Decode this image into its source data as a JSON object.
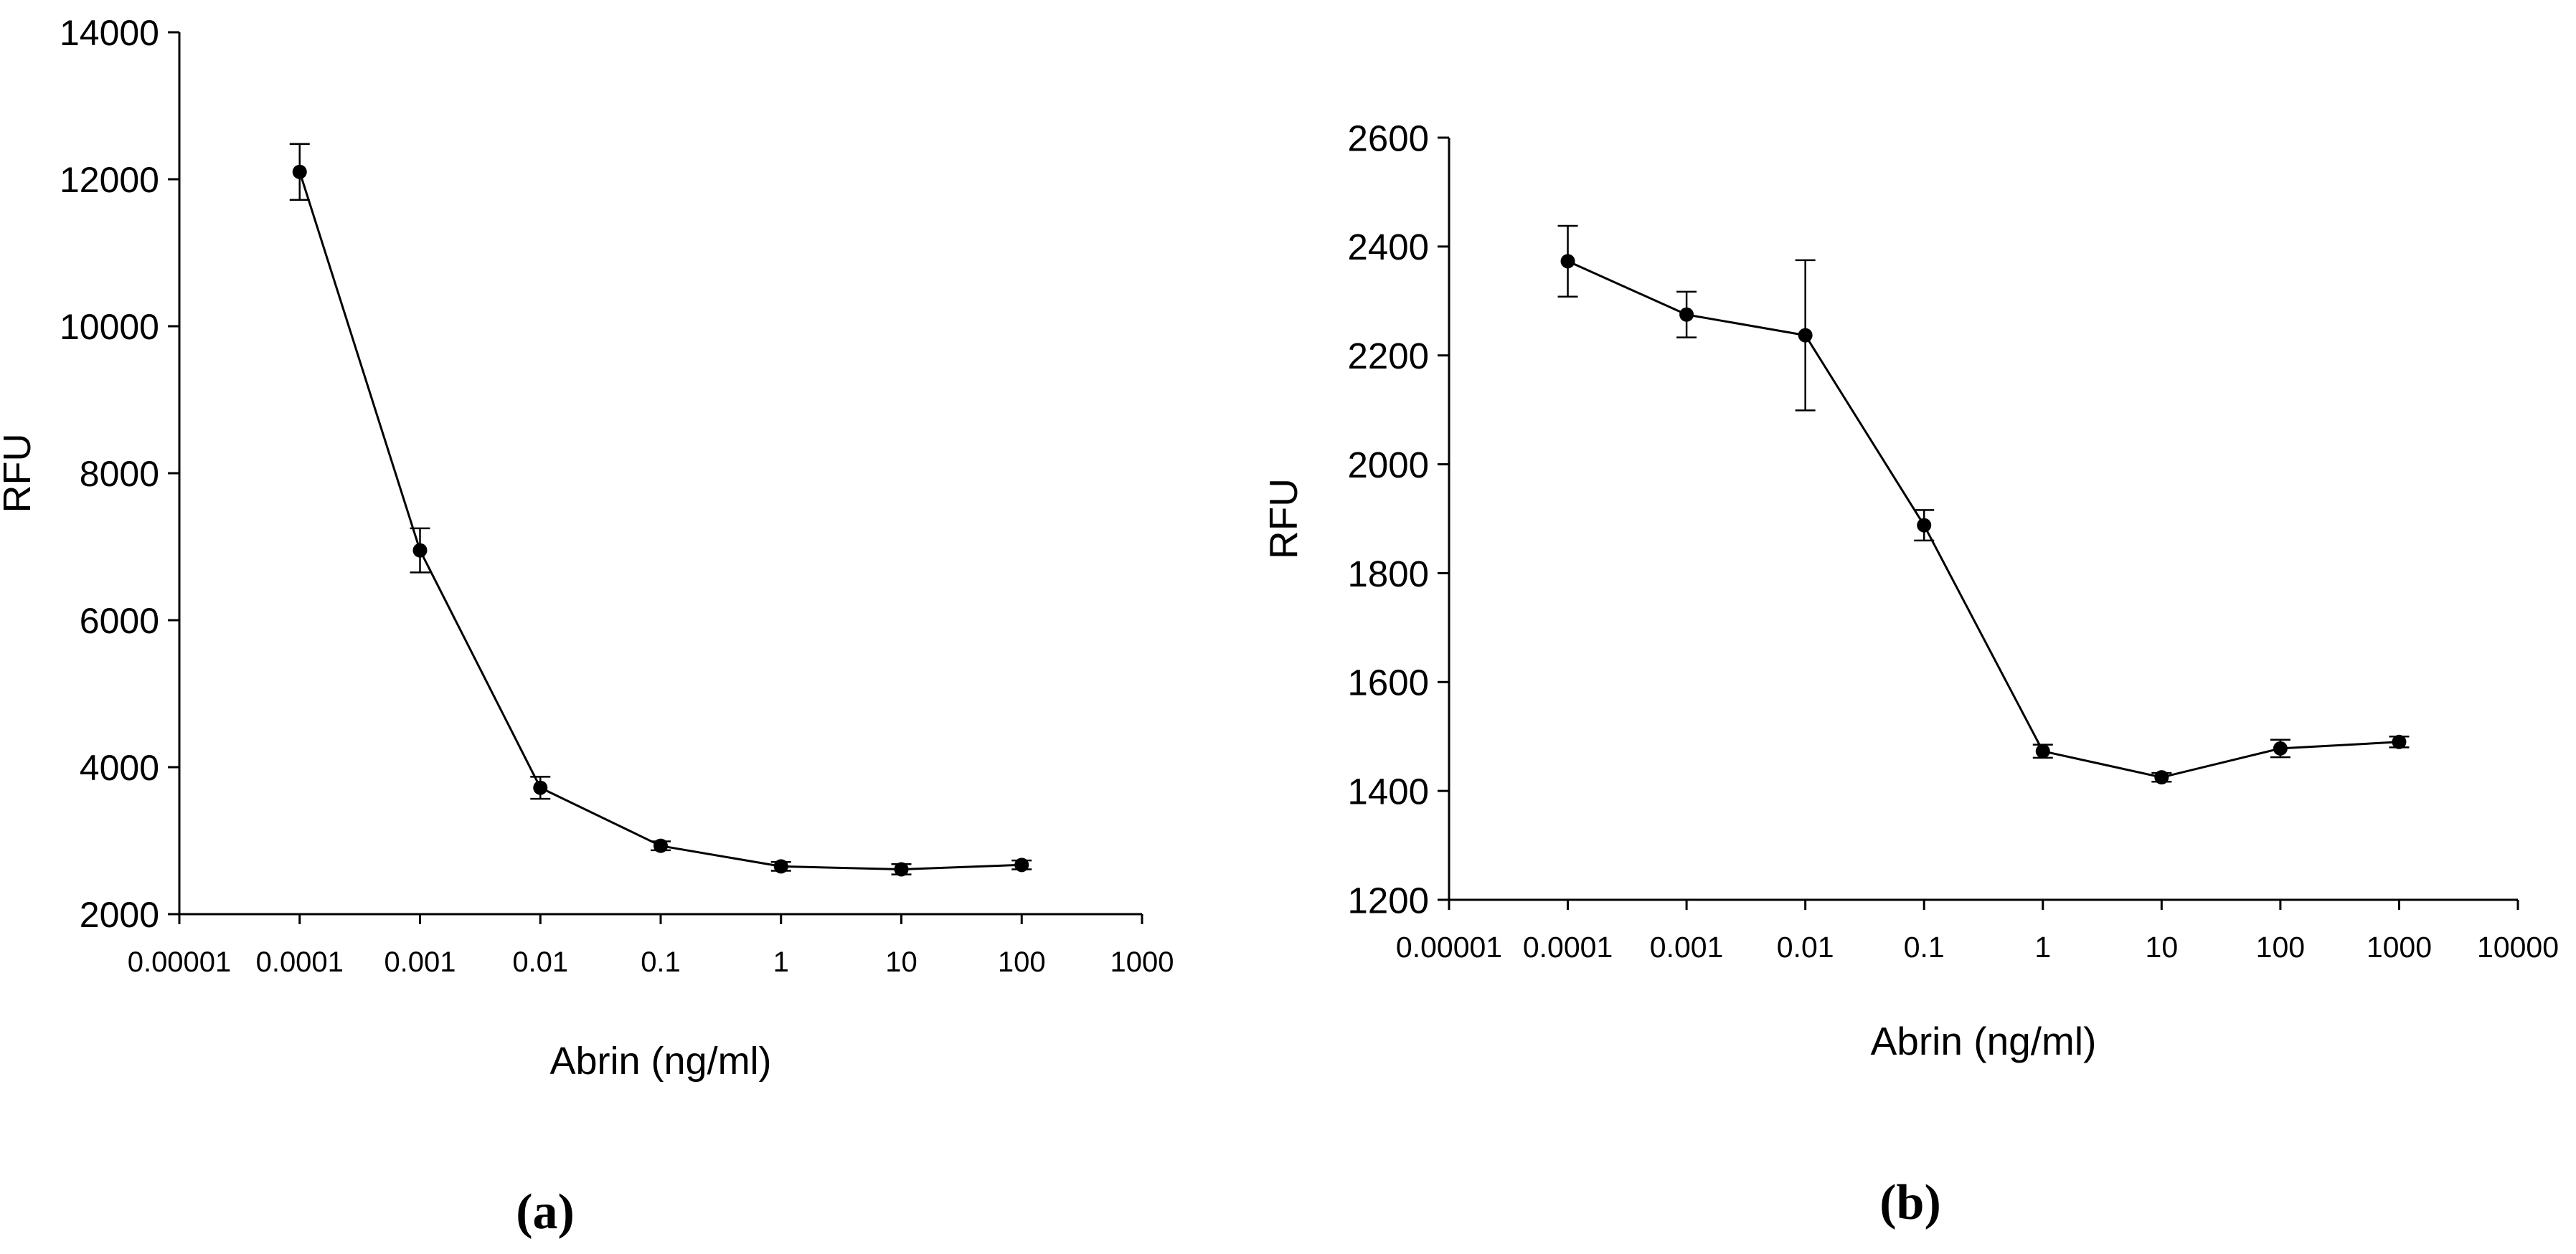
{
  "chart_data": [
    {
      "panel": "(a)",
      "type": "line",
      "xscale": "log",
      "xlabel": "Abrin (ng/ml)",
      "ylabel": "RFU",
      "ylim": [
        2000,
        14000
      ],
      "xlim": [
        1e-05,
        1000
      ],
      "xticks": [
        1e-05,
        0.0001,
        0.001,
        0.01,
        0.1,
        1,
        10,
        100,
        1000
      ],
      "xtick_labels": [
        "0.00001",
        "0.0001",
        "0.001",
        "0.01",
        "0.1",
        "1",
        "10",
        "100",
        "1000"
      ],
      "yticks": [
        2000,
        4000,
        6000,
        8000,
        10000,
        12000,
        14000
      ],
      "ytick_labels": [
        "2000",
        "4000",
        "6000",
        "8000",
        "10000",
        "12000",
        "14000"
      ],
      "grid": false,
      "series": [
        {
          "name": "RFU",
          "x": [
            0.0001,
            0.001,
            0.01,
            0.1,
            1,
            10,
            100
          ],
          "y": [
            12100,
            6950,
            3720,
            2930,
            2650,
            2610,
            2670
          ],
          "err": [
            380,
            300,
            150,
            60,
            60,
            70,
            60
          ]
        }
      ]
    },
    {
      "panel": "(b)",
      "type": "line",
      "xscale": "log",
      "xlabel": "Abrin (ng/ml)",
      "ylabel": "RFU",
      "ylim": [
        1200,
        2600
      ],
      "xlim": [
        1e-05,
        10000
      ],
      "xticks": [
        1e-05,
        0.0001,
        0.001,
        0.01,
        0.1,
        1,
        10,
        100,
        1000,
        10000
      ],
      "xtick_labels": [
        "0.00001",
        "0.0001",
        "0.001",
        "0.01",
        "0.1",
        "1",
        "10",
        "100",
        "1000",
        "10000"
      ],
      "yticks": [
        1200,
        1400,
        1600,
        1800,
        2000,
        2200,
        2400,
        2600
      ],
      "ytick_labels": [
        "1200",
        "1400",
        "1600",
        "1800",
        "2000",
        "2200",
        "2400",
        "2600"
      ],
      "grid": false,
      "series": [
        {
          "name": "RFU",
          "x": [
            0.0001,
            0.001,
            0.01,
            0.1,
            1,
            10,
            100,
            1000
          ],
          "y": [
            2373,
            2275,
            2237,
            1888,
            1473,
            1425,
            1478,
            1490
          ],
          "err": [
            65,
            42,
            138,
            28,
            12,
            8,
            16,
            10
          ]
        }
      ]
    }
  ]
}
